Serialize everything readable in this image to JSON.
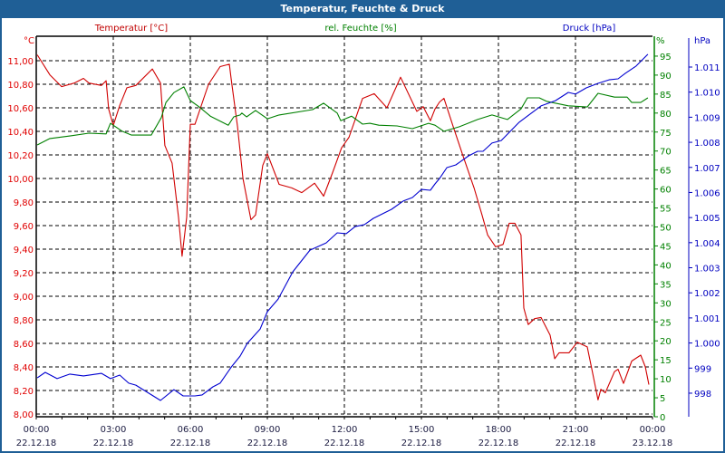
{
  "window": {
    "title": "Temperatur, Feuchte & Druck"
  },
  "chart_data": {
    "type": "line",
    "title": "Temperatur, Feuchte & Druck",
    "x_unit": "hours since 22.12.18 00:00",
    "xlim": [
      0,
      24
    ],
    "x_ticks": [
      {
        "time": "00:00",
        "date": "22.12.18"
      },
      {
        "time": "03:00",
        "date": "22.12.18"
      },
      {
        "time": "06:00",
        "date": "22.12.18"
      },
      {
        "time": "09:00",
        "date": "22.12.18"
      },
      {
        "time": "12:00",
        "date": "22.12.18"
      },
      {
        "time": "15:00",
        "date": "22.12.18"
      },
      {
        "time": "18:00",
        "date": "22.12.18"
      },
      {
        "time": "21:00",
        "date": "22.12.18"
      },
      {
        "time": "00:00",
        "date": "23.12.18"
      }
    ],
    "grid": true,
    "axes": {
      "temperature": {
        "unit": "°C",
        "ylim": [
          8.0,
          11.2
        ],
        "ticks": [
          "8,00",
          "8,20",
          "8,40",
          "8,60",
          "8,80",
          "9,00",
          "9,20",
          "9,40",
          "9,60",
          "9,80",
          "10,00",
          "10,20",
          "10,40",
          "10,60",
          "10,80",
          "11,00"
        ],
        "tick_values": [
          8.0,
          8.2,
          8.4,
          8.6,
          8.8,
          9.0,
          9.2,
          9.4,
          9.6,
          9.8,
          10.0,
          10.2,
          10.4,
          10.6,
          10.8,
          11.0
        ]
      },
      "humidity": {
        "unit": "%",
        "ylim": [
          0,
          100
        ],
        "ticks": [
          "0",
          "5",
          "10",
          "15",
          "20",
          "25",
          "30",
          "35",
          "40",
          "45",
          "50",
          "55",
          "60",
          "65",
          "70",
          "75",
          "80",
          "85",
          "90",
          "95"
        ],
        "tick_values": [
          0,
          5,
          10,
          15,
          20,
          25,
          30,
          35,
          40,
          45,
          50,
          55,
          60,
          65,
          70,
          75,
          80,
          85,
          90,
          95
        ]
      },
      "pressure": {
        "unit": "hPa",
        "ylim": [
          997,
          1012.2
        ],
        "ticks": [
          "998",
          "999",
          "1.000",
          "1.001",
          "1.002",
          "1.003",
          "1.004",
          "1.005",
          "1.006",
          "1.007",
          "1.008",
          "1.009",
          "1.010",
          "1.011"
        ],
        "tick_values": [
          998,
          999,
          1000,
          1001,
          1002,
          1003,
          1004,
          1005,
          1006,
          1007,
          1008,
          1009,
          1010,
          1011
        ]
      }
    },
    "series": [
      {
        "name": "Temperatur [°C]",
        "axis": "temperature",
        "color": "#d00000",
        "points": [
          [
            0.04,
            11.05
          ],
          [
            0.53,
            10.88
          ],
          [
            0.99,
            10.78
          ],
          [
            1.48,
            10.81
          ],
          [
            1.84,
            10.85
          ],
          [
            2.05,
            10.81
          ],
          [
            2.54,
            10.79
          ],
          [
            2.72,
            10.83
          ],
          [
            2.82,
            10.59
          ],
          [
            3.0,
            10.45
          ],
          [
            3.25,
            10.62
          ],
          [
            3.53,
            10.77
          ],
          [
            3.88,
            10.79
          ],
          [
            4.52,
            10.93
          ],
          [
            4.84,
            10.81
          ],
          [
            5.01,
            10.28
          ],
          [
            5.29,
            10.13
          ],
          [
            5.54,
            9.67
          ],
          [
            5.68,
            9.34
          ],
          [
            5.86,
            9.67
          ],
          [
            6.0,
            10.46
          ],
          [
            6.18,
            10.46
          ],
          [
            6.71,
            10.8
          ],
          [
            7.16,
            10.95
          ],
          [
            7.52,
            10.97
          ],
          [
            7.59,
            10.85
          ],
          [
            7.84,
            10.44
          ],
          [
            8.05,
            10.0
          ],
          [
            8.36,
            9.65
          ],
          [
            8.54,
            9.69
          ],
          [
            8.82,
            10.11
          ],
          [
            9.0,
            10.21
          ],
          [
            9.46,
            9.95
          ],
          [
            9.95,
            9.92
          ],
          [
            10.34,
            9.88
          ],
          [
            10.84,
            9.96
          ],
          [
            11.19,
            9.85
          ],
          [
            11.54,
            10.05
          ],
          [
            11.89,
            10.26
          ],
          [
            12.18,
            10.35
          ],
          [
            12.71,
            10.68
          ],
          [
            13.16,
            10.72
          ],
          [
            13.66,
            10.6
          ],
          [
            14.19,
            10.86
          ],
          [
            14.82,
            10.57
          ],
          [
            15.07,
            10.61
          ],
          [
            15.35,
            10.49
          ],
          [
            15.53,
            10.59
          ],
          [
            15.71,
            10.65
          ],
          [
            15.88,
            10.68
          ],
          [
            16.24,
            10.44
          ],
          [
            16.59,
            10.21
          ],
          [
            17.05,
            9.92
          ],
          [
            17.36,
            9.69
          ],
          [
            17.58,
            9.52
          ],
          [
            17.89,
            9.42
          ],
          [
            18.18,
            9.44
          ],
          [
            18.42,
            9.62
          ],
          [
            18.64,
            9.62
          ],
          [
            18.88,
            9.52
          ],
          [
            18.99,
            8.9
          ],
          [
            19.16,
            8.76
          ],
          [
            19.41,
            8.81
          ],
          [
            19.66,
            8.82
          ],
          [
            20.01,
            8.67
          ],
          [
            20.19,
            8.47
          ],
          [
            20.36,
            8.52
          ],
          [
            20.75,
            8.52
          ],
          [
            21.07,
            8.61
          ],
          [
            21.46,
            8.57
          ],
          [
            21.64,
            8.38
          ],
          [
            21.88,
            8.12
          ],
          [
            21.99,
            8.21
          ],
          [
            22.16,
            8.18
          ],
          [
            22.52,
            8.36
          ],
          [
            22.66,
            8.38
          ],
          [
            22.87,
            8.26
          ],
          [
            23.19,
            8.45
          ],
          [
            23.54,
            8.5
          ],
          [
            23.72,
            8.4
          ],
          [
            23.86,
            8.25
          ]
        ]
      },
      {
        "name": "rel. Feuchte [%]",
        "axis": "humidity",
        "color": "#008000",
        "points": [
          [
            0.04,
            71.6
          ],
          [
            0.53,
            73.3
          ],
          [
            1.34,
            74.0
          ],
          [
            2.05,
            74.7
          ],
          [
            2.72,
            74.5
          ],
          [
            2.89,
            77.3
          ],
          [
            3.35,
            75.2
          ],
          [
            3.71,
            74.2
          ],
          [
            4.48,
            74.2
          ],
          [
            4.87,
            78.8
          ],
          [
            5.05,
            82.8
          ],
          [
            5.36,
            85.4
          ],
          [
            5.75,
            86.9
          ],
          [
            6.0,
            83.3
          ],
          [
            6.35,
            81.6
          ],
          [
            6.78,
            79.2
          ],
          [
            7.48,
            76.8
          ],
          [
            7.69,
            79.0
          ],
          [
            7.94,
            79.5
          ],
          [
            8.01,
            80.0
          ],
          [
            8.19,
            79.0
          ],
          [
            8.54,
            80.7
          ],
          [
            9.0,
            78.5
          ],
          [
            9.46,
            79.5
          ],
          [
            10.76,
            80.9
          ],
          [
            11.19,
            82.6
          ],
          [
            11.72,
            80.0
          ],
          [
            11.86,
            78.0
          ],
          [
            12.28,
            79.2
          ],
          [
            12.71,
            77.1
          ],
          [
            12.99,
            77.3
          ],
          [
            13.34,
            76.8
          ],
          [
            14.05,
            76.6
          ],
          [
            14.65,
            75.9
          ],
          [
            15.28,
            77.3
          ],
          [
            15.53,
            76.8
          ],
          [
            15.88,
            75.2
          ],
          [
            16.48,
            76.4
          ],
          [
            17.19,
            78.3
          ],
          [
            17.75,
            79.5
          ],
          [
            18.35,
            78.3
          ],
          [
            18.88,
            81.1
          ],
          [
            19.13,
            84.0
          ],
          [
            19.59,
            84.0
          ],
          [
            19.87,
            83.1
          ],
          [
            20.72,
            81.9
          ],
          [
            21.46,
            81.6
          ],
          [
            21.88,
            85.2
          ],
          [
            22.52,
            84.2
          ],
          [
            23.01,
            84.2
          ],
          [
            23.19,
            82.8
          ],
          [
            23.54,
            82.8
          ],
          [
            23.82,
            84.0
          ]
        ]
      },
      {
        "name": "Druck [hPa]",
        "axis": "pressure",
        "color": "#0000d0",
        "points": [
          [
            0.04,
            998.61
          ],
          [
            0.35,
            998.83
          ],
          [
            0.81,
            998.58
          ],
          [
            1.31,
            998.76
          ],
          [
            1.84,
            998.69
          ],
          [
            2.54,
            998.79
          ],
          [
            2.89,
            998.58
          ],
          [
            3.25,
            998.72
          ],
          [
            3.6,
            998.4
          ],
          [
            3.88,
            998.32
          ],
          [
            4.84,
            997.71
          ],
          [
            5.36,
            998.14
          ],
          [
            5.72,
            997.89
          ],
          [
            6.18,
            997.89
          ],
          [
            6.46,
            997.93
          ],
          [
            6.88,
            998.25
          ],
          [
            7.16,
            998.4
          ],
          [
            7.59,
            999.03
          ],
          [
            7.94,
            999.48
          ],
          [
            8.22,
            999.99
          ],
          [
            8.72,
            1000.56
          ],
          [
            9.0,
            1001.25
          ],
          [
            9.42,
            1001.75
          ],
          [
            9.99,
            1002.84
          ],
          [
            10.66,
            1003.7
          ],
          [
            11.29,
            1003.99
          ],
          [
            11.72,
            1004.39
          ],
          [
            12.07,
            1004.36
          ],
          [
            12.42,
            1004.64
          ],
          [
            12.78,
            1004.72
          ],
          [
            13.13,
            1004.97
          ],
          [
            13.84,
            1005.33
          ],
          [
            14.29,
            1005.66
          ],
          [
            14.65,
            1005.8
          ],
          [
            15.0,
            1006.12
          ],
          [
            15.35,
            1006.09
          ],
          [
            15.53,
            1006.34
          ],
          [
            15.71,
            1006.56
          ],
          [
            15.99,
            1006.99
          ],
          [
            16.34,
            1007.1
          ],
          [
            16.84,
            1007.46
          ],
          [
            17.19,
            1007.64
          ],
          [
            17.4,
            1007.64
          ],
          [
            17.75,
            1007.97
          ],
          [
            18.11,
            1008.07
          ],
          [
            18.81,
            1008.8
          ],
          [
            19.66,
            1009.45
          ],
          [
            20.22,
            1009.66
          ],
          [
            20.72,
            1009.99
          ],
          [
            21.0,
            1009.92
          ],
          [
            21.42,
            1010.17
          ],
          [
            21.88,
            1010.35
          ],
          [
            22.31,
            1010.49
          ],
          [
            22.66,
            1010.53
          ],
          [
            22.94,
            1010.75
          ],
          [
            23.36,
            1011.04
          ],
          [
            23.82,
            1011.51
          ]
        ]
      }
    ],
    "legend": "top"
  }
}
